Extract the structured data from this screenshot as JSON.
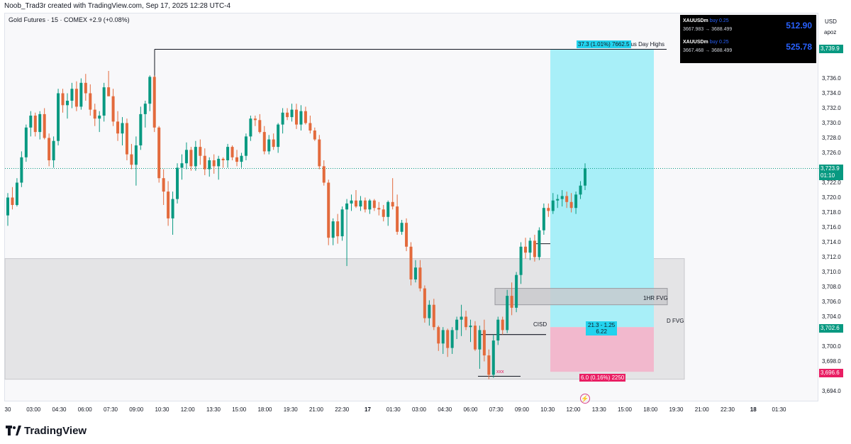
{
  "header": {
    "attribution": "Noob_Trad3r created with TradingView.com, Sep 17, 2025 12:28 UTC-4"
  },
  "symbol": {
    "line": "Gold Futures · 15 · COMEX  +2.9 (+0.08%)"
  },
  "axis": {
    "currency": "USD",
    "account": "apoz",
    "price_labels": [
      "3,736.0",
      "3,734.0",
      "3,732.0",
      "3,730.0",
      "3,728.0",
      "3,726.0",
      "3,722.0",
      "3,720.0",
      "3,718.0",
      "3,716.0",
      "3,714.0",
      "3,712.0",
      "3,710.0",
      "3,708.0",
      "3,706.0",
      "3,704.0",
      "3,700.0",
      "3,698.0",
      "3,694.0"
    ],
    "time_labels": [
      "30",
      "03:00",
      "04:30",
      "06:00",
      "07:30",
      "09:00",
      "10:30",
      "12:00",
      "13:30",
      "15:00",
      "18:00",
      "19:30",
      "21:00",
      "22:30",
      "17",
      "01:30",
      "03:00",
      "04:30",
      "06:00",
      "07:30",
      "09:00",
      "10:30",
      "12:00",
      "13:30",
      "15:00",
      "18:00",
      "19:30",
      "21:00",
      "22:30",
      "18",
      "01:30"
    ],
    "tags": {
      "top": "3,739.9",
      "current_price": "3,723.9",
      "countdown": "01:10",
      "entry": "3,702.6",
      "stop": "3,696.6",
      "partial_hidden": "3,696.0"
    }
  },
  "trade_panel": {
    "rows": [
      {
        "symbol": "XAUUSDm",
        "side": "buy 0.25",
        "prices": "3667.983 → 3688.499",
        "pnl": "512.90"
      },
      {
        "symbol": "XAUUSDm",
        "side": "buy 0.25",
        "prices": "3667.468 → 3688.499",
        "pnl": "525.78"
      }
    ]
  },
  "annotations": {
    "target_tag": "37.3 (1.01%) 7662.5",
    "prev_day_highs": "ous Day Highs",
    "rr_tag_line1": "21.3 - 1.25",
    "rr_tag_line2": "6.22",
    "stop_tag": "6.0 (0.16%) 2250",
    "fvg_1hr": "1HR FVG",
    "fvg_d": "D FVG",
    "cisd": "CISD",
    "xxx": "xxx"
  },
  "colors": {
    "up": "#089981",
    "down": "#e36a3c",
    "target_zone": "#a8eff8",
    "stop_zone": "#f2b8cd",
    "cyan_tag": "#22d3ee",
    "pink_tag": "#e91e63",
    "green_tag": "#089981",
    "d_fvg_zone": "#e4e4e6",
    "hr_fvg_zone": "#c8c8cc"
  },
  "chart_data": {
    "type": "candlestick",
    "title": "Gold Futures · 15 · COMEX",
    "ylim": [
      3693,
      3741
    ],
    "current_price": 3723.9,
    "candles": [
      [
        3717.6,
        3720.6,
        3716.2,
        3720.0
      ],
      [
        3720.0,
        3721.4,
        3718.4,
        3719.0
      ],
      [
        3719.0,
        3722.6,
        3718.8,
        3722.0
      ],
      [
        3722.0,
        3726.2,
        3721.4,
        3725.4
      ],
      [
        3725.4,
        3729.8,
        3724.8,
        3729.4
      ],
      [
        3729.4,
        3731.6,
        3728.2,
        3731.0
      ],
      [
        3731.0,
        3731.4,
        3728.2,
        3728.8
      ],
      [
        3728.8,
        3731.6,
        3727.8,
        3731.2
      ],
      [
        3731.2,
        3732.0,
        3727.8,
        3728.0
      ],
      [
        3728.0,
        3728.6,
        3724.2,
        3725.0
      ],
      [
        3725.0,
        3728.2,
        3724.0,
        3727.6
      ],
      [
        3727.6,
        3734.6,
        3727.0,
        3734.0
      ],
      [
        3734.0,
        3734.6,
        3731.4,
        3732.4
      ],
      [
        3732.4,
        3734.0,
        3730.6,
        3733.0
      ],
      [
        3733.0,
        3735.4,
        3732.0,
        3734.6
      ],
      [
        3734.6,
        3735.6,
        3731.6,
        3732.2
      ],
      [
        3732.2,
        3736.0,
        3731.8,
        3735.4
      ],
      [
        3735.4,
        3736.6,
        3733.0,
        3734.0
      ],
      [
        3734.0,
        3735.2,
        3731.0,
        3731.8
      ],
      [
        3731.8,
        3732.6,
        3729.6,
        3730.6
      ],
      [
        3730.6,
        3731.6,
        3728.8,
        3731.0
      ],
      [
        3731.0,
        3735.4,
        3730.2,
        3734.8
      ],
      [
        3734.8,
        3737.0,
        3733.6,
        3733.6
      ],
      [
        3733.6,
        3734.6,
        3729.6,
        3730.2
      ],
      [
        3730.2,
        3731.6,
        3727.6,
        3728.6
      ],
      [
        3728.6,
        3730.8,
        3727.0,
        3730.0
      ],
      [
        3730.0,
        3730.6,
        3725.0,
        3725.8
      ],
      [
        3725.8,
        3727.2,
        3723.8,
        3724.4
      ],
      [
        3724.4,
        3728.2,
        3721.6,
        3727.0
      ],
      [
        3727.0,
        3732.2,
        3726.4,
        3731.2
      ],
      [
        3731.2,
        3733.0,
        3729.4,
        3732.6
      ],
      [
        3732.6,
        3736.4,
        3731.6,
        3736.2
      ],
      [
        3736.2,
        3736.4,
        3728.8,
        3729.4
      ],
      [
        3729.4,
        3729.6,
        3722.0,
        3722.6
      ],
      [
        3722.6,
        3723.8,
        3719.0,
        3720.8
      ],
      [
        3720.8,
        3722.2,
        3716.2,
        3717.2
      ],
      [
        3717.2,
        3720.8,
        3715.0,
        3719.8
      ],
      [
        3719.8,
        3724.6,
        3719.2,
        3724.0
      ],
      [
        3724.0,
        3725.8,
        3722.4,
        3724.6
      ],
      [
        3724.6,
        3727.4,
        3723.8,
        3726.4
      ],
      [
        3726.4,
        3726.8,
        3723.6,
        3724.2
      ],
      [
        3724.2,
        3727.6,
        3723.6,
        3726.8
      ],
      [
        3726.8,
        3727.8,
        3724.4,
        3725.6
      ],
      [
        3725.6,
        3726.6,
        3723.0,
        3723.8
      ],
      [
        3723.8,
        3725.4,
        3722.8,
        3725.0
      ],
      [
        3725.0,
        3725.8,
        3723.2,
        3724.2
      ],
      [
        3724.2,
        3725.6,
        3722.4,
        3725.2
      ],
      [
        3725.2,
        3725.4,
        3724.0,
        3725.0
      ],
      [
        3725.0,
        3727.2,
        3724.0,
        3726.8
      ],
      [
        3726.8,
        3727.0,
        3725.0,
        3725.4
      ],
      [
        3725.4,
        3726.4,
        3724.2,
        3724.8
      ],
      [
        3724.8,
        3726.0,
        3724.0,
        3725.6
      ],
      [
        3725.6,
        3728.6,
        3725.0,
        3728.2
      ],
      [
        3728.2,
        3731.0,
        3727.6,
        3730.6
      ],
      [
        3730.6,
        3731.0,
        3729.6,
        3730.4
      ],
      [
        3730.4,
        3731.2,
        3728.6,
        3728.8
      ],
      [
        3728.8,
        3729.6,
        3725.8,
        3726.2
      ],
      [
        3726.2,
        3728.4,
        3725.8,
        3727.8
      ],
      [
        3727.8,
        3728.6,
        3726.4,
        3726.8
      ],
      [
        3726.8,
        3730.0,
        3726.0,
        3729.8
      ],
      [
        3729.8,
        3732.0,
        3728.6,
        3731.4
      ],
      [
        3731.4,
        3732.0,
        3730.4,
        3730.8
      ],
      [
        3730.8,
        3732.6,
        3730.2,
        3731.8
      ],
      [
        3731.8,
        3732.6,
        3729.2,
        3729.8
      ],
      [
        3729.8,
        3732.4,
        3729.0,
        3731.6
      ],
      [
        3731.6,
        3732.2,
        3729.8,
        3730.0
      ],
      [
        3730.0,
        3731.0,
        3728.6,
        3729.0
      ],
      [
        3729.0,
        3729.4,
        3727.6,
        3727.8
      ],
      [
        3727.8,
        3728.4,
        3723.8,
        3724.2
      ],
      [
        3724.2,
        3725.0,
        3721.6,
        3722.0
      ],
      [
        3722.0,
        3722.4,
        3713.6,
        3714.6
      ],
      [
        3714.6,
        3717.2,
        3713.6,
        3716.8
      ],
      [
        3716.8,
        3717.8,
        3713.8,
        3714.8
      ],
      [
        3714.8,
        3718.8,
        3714.2,
        3718.4
      ],
      [
        3718.4,
        3719.8,
        3710.8,
        3719.2
      ],
      [
        3719.2,
        3720.4,
        3718.2,
        3719.6
      ],
      [
        3719.6,
        3721.0,
        3718.6,
        3718.8
      ],
      [
        3718.8,
        3720.2,
        3718.2,
        3719.6
      ],
      [
        3719.6,
        3720.0,
        3718.0,
        3718.4
      ],
      [
        3718.4,
        3719.8,
        3717.8,
        3719.6
      ],
      [
        3719.6,
        3719.8,
        3718.2,
        3718.6
      ],
      [
        3718.6,
        3719.4,
        3717.6,
        3718.4
      ],
      [
        3718.4,
        3719.0,
        3716.8,
        3717.4
      ],
      [
        3717.4,
        3719.6,
        3716.2,
        3719.4
      ],
      [
        3719.4,
        3722.6,
        3718.4,
        3718.8
      ],
      [
        3718.8,
        3720.4,
        3715.0,
        3715.4
      ],
      [
        3715.4,
        3717.0,
        3715.0,
        3716.6
      ],
      [
        3716.6,
        3717.2,
        3712.8,
        3713.4
      ],
      [
        3713.4,
        3714.0,
        3708.2,
        3709.0
      ],
      [
        3709.0,
        3711.6,
        3708.6,
        3710.6
      ],
      [
        3710.6,
        3711.6,
        3707.4,
        3707.8
      ],
      [
        3707.8,
        3708.2,
        3703.2,
        3703.8
      ],
      [
        3703.8,
        3706.2,
        3702.8,
        3705.6
      ],
      [
        3705.6,
        3706.4,
        3702.2,
        3702.6
      ],
      [
        3702.6,
        3702.8,
        3699.4,
        3700.4
      ],
      [
        3700.4,
        3702.6,
        3699.0,
        3702.2
      ],
      [
        3702.2,
        3702.4,
        3698.6,
        3699.8
      ],
      [
        3699.8,
        3702.6,
        3699.0,
        3702.2
      ],
      [
        3702.2,
        3704.0,
        3701.0,
        3703.6
      ],
      [
        3703.6,
        3705.6,
        3701.4,
        3704.0
      ],
      [
        3704.0,
        3704.8,
        3702.2,
        3702.6
      ],
      [
        3702.6,
        3703.6,
        3700.6,
        3702.8
      ],
      [
        3702.8,
        3703.4,
        3699.4,
        3699.6
      ],
      [
        3699.6,
        3702.8,
        3697.0,
        3702.2
      ],
      [
        3702.2,
        3703.6,
        3698.0,
        3698.8
      ],
      [
        3698.8,
        3699.6,
        3695.6,
        3696.2
      ],
      [
        3696.2,
        3701.6,
        3695.8,
        3700.8
      ],
      [
        3700.8,
        3704.0,
        3700.2,
        3703.6
      ],
      [
        3703.6,
        3704.0,
        3701.6,
        3702.2
      ],
      [
        3702.2,
        3707.6,
        3701.8,
        3706.8
      ],
      [
        3706.8,
        3708.6,
        3704.2,
        3705.2
      ],
      [
        3705.2,
        3710.0,
        3704.6,
        3709.6
      ],
      [
        3709.6,
        3714.0,
        3708.4,
        3713.4
      ],
      [
        3713.4,
        3714.6,
        3711.8,
        3712.6
      ],
      [
        3712.6,
        3714.6,
        3711.6,
        3714.2
      ],
      [
        3714.2,
        3715.0,
        3711.4,
        3712.0
      ],
      [
        3712.0,
        3716.0,
        3711.6,
        3715.6
      ],
      [
        3715.6,
        3719.2,
        3715.0,
        3718.6
      ],
      [
        3718.6,
        3719.2,
        3717.4,
        3718.2
      ],
      [
        3718.2,
        3720.6,
        3717.8,
        3719.6
      ],
      [
        3719.6,
        3720.4,
        3718.6,
        3719.8
      ],
      [
        3719.8,
        3721.0,
        3718.8,
        3720.2
      ],
      [
        3720.2,
        3720.8,
        3718.6,
        3719.4
      ],
      [
        3719.4,
        3720.6,
        3718.0,
        3718.6
      ],
      [
        3718.6,
        3720.8,
        3717.8,
        3720.4
      ],
      [
        3720.4,
        3722.2,
        3719.8,
        3721.6
      ],
      [
        3721.6,
        3724.6,
        3721.0,
        3723.9
      ]
    ],
    "horizontal_levels": {
      "previous_day_high": 3739.9,
      "cisd": 3701.6,
      "entry": 3702.6,
      "stop": 3696.6,
      "sweep_low": 3696.0
    },
    "zones": {
      "d_fvg": [
        3695.6,
        3711.8
      ],
      "hr_fvg": [
        3705.6,
        3707.8
      ],
      "target": [
        3702.6,
        3739.9
      ],
      "stop": [
        3696.6,
        3702.6
      ]
    }
  }
}
